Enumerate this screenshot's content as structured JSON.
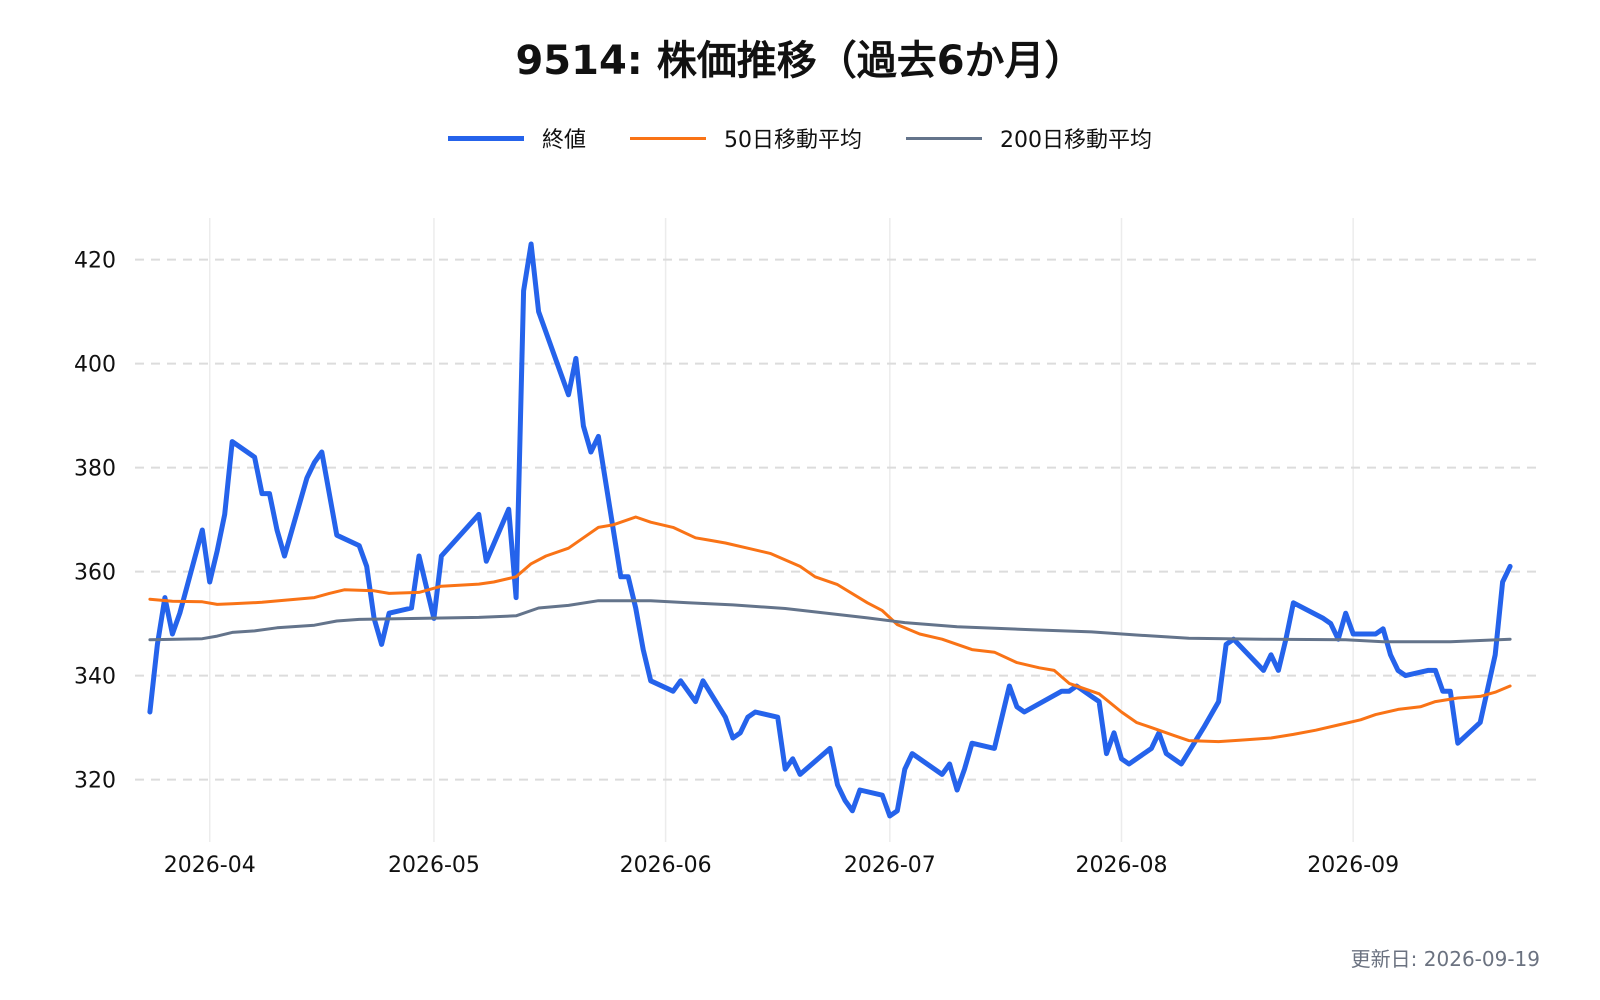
{
  "chart_data": {
    "type": "line",
    "title": "9514: 株価推移（過去6か月）",
    "xlabel": "",
    "ylabel": "",
    "ylim": [
      308,
      428
    ],
    "xlim": [
      "2026-03-22",
      "2026-09-26"
    ],
    "grid": true,
    "legend_position": "top-center",
    "yticks": [
      320,
      340,
      360,
      380,
      400,
      420
    ],
    "xticks": [
      "2026-04",
      "2026-05",
      "2026-06",
      "2026-07",
      "2026-08",
      "2026-09"
    ],
    "series": [
      {
        "name": "終値",
        "color": "#2563eb",
        "points": [
          [
            "2026-03-24",
            333
          ],
          [
            "2026-03-25",
            346
          ],
          [
            "2026-03-26",
            355
          ],
          [
            "2026-03-27",
            348
          ],
          [
            "2026-03-28",
            352
          ],
          [
            "2026-03-31",
            368
          ],
          [
            "2026-04-01",
            358
          ],
          [
            "2026-04-02",
            364
          ],
          [
            "2026-04-03",
            371
          ],
          [
            "2026-04-04",
            385
          ],
          [
            "2026-04-07",
            382
          ],
          [
            "2026-04-08",
            375
          ],
          [
            "2026-04-09",
            375
          ],
          [
            "2026-04-10",
            368
          ],
          [
            "2026-04-11",
            363
          ],
          [
            "2026-04-14",
            378
          ],
          [
            "2026-04-15",
            381
          ],
          [
            "2026-04-16",
            383
          ],
          [
            "2026-04-18",
            367
          ],
          [
            "2026-04-21",
            365
          ],
          [
            "2026-04-22",
            361
          ],
          [
            "2026-04-23",
            351
          ],
          [
            "2026-04-24",
            346
          ],
          [
            "2026-04-25",
            352
          ],
          [
            "2026-04-28",
            353
          ],
          [
            "2026-04-29",
            363
          ],
          [
            "2026-05-01",
            351
          ],
          [
            "2026-05-02",
            363
          ],
          [
            "2026-05-07",
            371
          ],
          [
            "2026-05-08",
            362
          ],
          [
            "2026-05-11",
            372
          ],
          [
            "2026-05-12",
            355
          ],
          [
            "2026-05-13",
            414
          ],
          [
            "2026-05-14",
            423
          ],
          [
            "2026-05-15",
            410
          ],
          [
            "2026-05-18",
            398
          ],
          [
            "2026-05-19",
            394
          ],
          [
            "2026-05-20",
            401
          ],
          [
            "2026-05-21",
            388
          ],
          [
            "2026-05-22",
            383
          ],
          [
            "2026-05-23",
            386
          ],
          [
            "2026-05-26",
            359
          ],
          [
            "2026-05-27",
            359
          ],
          [
            "2026-05-28",
            353
          ],
          [
            "2026-05-29",
            345
          ],
          [
            "2026-05-30",
            339
          ],
          [
            "2026-06-02",
            337
          ],
          [
            "2026-06-03",
            339
          ],
          [
            "2026-06-05",
            335
          ],
          [
            "2026-06-06",
            339
          ],
          [
            "2026-06-09",
            332
          ],
          [
            "2026-06-10",
            328
          ],
          [
            "2026-06-11",
            329
          ],
          [
            "2026-06-12",
            332
          ],
          [
            "2026-06-13",
            333
          ],
          [
            "2026-06-16",
            332
          ],
          [
            "2026-06-17",
            322
          ],
          [
            "2026-06-18",
            324
          ],
          [
            "2026-06-19",
            321
          ],
          [
            "2026-06-23",
            326
          ],
          [
            "2026-06-24",
            319
          ],
          [
            "2026-06-25",
            316
          ],
          [
            "2026-06-26",
            314
          ],
          [
            "2026-06-27",
            318
          ],
          [
            "2026-06-30",
            317
          ],
          [
            "2026-07-01",
            313
          ],
          [
            "2026-07-02",
            314
          ],
          [
            "2026-07-03",
            322
          ],
          [
            "2026-07-04",
            325
          ],
          [
            "2026-07-08",
            321
          ],
          [
            "2026-07-09",
            323
          ],
          [
            "2026-07-10",
            318
          ],
          [
            "2026-07-11",
            322
          ],
          [
            "2026-07-12",
            327
          ],
          [
            "2026-07-15",
            326
          ],
          [
            "2026-07-17",
            338
          ],
          [
            "2026-07-18",
            334
          ],
          [
            "2026-07-19",
            333
          ],
          [
            "2026-07-24",
            337
          ],
          [
            "2026-07-25",
            337
          ],
          [
            "2026-07-26",
            338
          ],
          [
            "2026-07-28",
            336
          ],
          [
            "2026-07-29",
            335
          ],
          [
            "2026-07-30",
            325
          ],
          [
            "2026-07-31",
            329
          ],
          [
            "2026-08-01",
            324
          ],
          [
            "2026-08-02",
            323
          ],
          [
            "2026-08-05",
            326
          ],
          [
            "2026-08-06",
            329
          ],
          [
            "2026-08-07",
            325
          ],
          [
            "2026-08-09",
            323
          ],
          [
            "2026-08-12",
            330
          ],
          [
            "2026-08-14",
            335
          ],
          [
            "2026-08-15",
            346
          ],
          [
            "2026-08-16",
            347
          ],
          [
            "2026-08-20",
            341
          ],
          [
            "2026-08-21",
            344
          ],
          [
            "2026-08-22",
            341
          ],
          [
            "2026-08-23",
            347
          ],
          [
            "2026-08-24",
            354
          ],
          [
            "2026-08-28",
            351
          ],
          [
            "2026-08-29",
            350
          ],
          [
            "2026-08-30",
            347
          ],
          [
            "2026-08-31",
            352
          ],
          [
            "2026-09-01",
            348
          ],
          [
            "2026-09-04",
            348
          ],
          [
            "2026-09-05",
            349
          ],
          [
            "2026-09-06",
            344
          ],
          [
            "2026-09-07",
            341
          ],
          [
            "2026-09-08",
            340
          ],
          [
            "2026-09-11",
            341
          ],
          [
            "2026-09-12",
            341
          ],
          [
            "2026-09-13",
            337
          ],
          [
            "2026-09-14",
            337
          ],
          [
            "2026-09-15",
            327
          ],
          [
            "2026-09-18",
            331
          ],
          [
            "2026-09-20",
            344
          ],
          [
            "2026-09-21",
            358
          ],
          [
            "2026-09-22",
            361
          ]
        ]
      },
      {
        "name": "50日移動平均",
        "color": "#f97316",
        "points": [
          [
            "2026-03-24",
            354.7
          ],
          [
            "2026-03-27",
            354.3
          ],
          [
            "2026-03-31",
            354.2
          ],
          [
            "2026-04-02",
            353.7
          ],
          [
            "2026-04-04",
            353.8
          ],
          [
            "2026-04-08",
            354.1
          ],
          [
            "2026-04-11",
            354.5
          ],
          [
            "2026-04-15",
            355.0
          ],
          [
            "2026-04-17",
            355.8
          ],
          [
            "2026-04-19",
            356.5
          ],
          [
            "2026-04-23",
            356.3
          ],
          [
            "2026-04-25",
            355.8
          ],
          [
            "2026-04-29",
            356.0
          ],
          [
            "2026-05-02",
            357.2
          ],
          [
            "2026-05-07",
            357.6
          ],
          [
            "2026-05-09",
            358.0
          ],
          [
            "2026-05-12",
            359.0
          ],
          [
            "2026-05-14",
            361.5
          ],
          [
            "2026-05-16",
            363.0
          ],
          [
            "2026-05-19",
            364.5
          ],
          [
            "2026-05-21",
            366.5
          ],
          [
            "2026-05-23",
            368.5
          ],
          [
            "2026-05-25",
            369.0
          ],
          [
            "2026-05-28",
            370.5
          ],
          [
            "2026-05-30",
            369.5
          ],
          [
            "2026-06-02",
            368.5
          ],
          [
            "2026-06-05",
            366.5
          ],
          [
            "2026-06-07",
            366.0
          ],
          [
            "2026-06-09",
            365.5
          ],
          [
            "2026-06-12",
            364.5
          ],
          [
            "2026-06-15",
            363.5
          ],
          [
            "2026-06-19",
            361.0
          ],
          [
            "2026-06-21",
            359.0
          ],
          [
            "2026-06-24",
            357.5
          ],
          [
            "2026-06-28",
            354.0
          ],
          [
            "2026-06-30",
            352.5
          ],
          [
            "2026-07-02",
            349.8
          ],
          [
            "2026-07-05",
            348.0
          ],
          [
            "2026-07-08",
            347.0
          ],
          [
            "2026-07-12",
            345.0
          ],
          [
            "2026-07-15",
            344.5
          ],
          [
            "2026-07-18",
            342.5
          ],
          [
            "2026-07-21",
            341.5
          ],
          [
            "2026-07-23",
            341.0
          ],
          [
            "2026-07-25",
            338.5
          ],
          [
            "2026-07-29",
            336.5
          ],
          [
            "2026-08-01",
            333.0
          ],
          [
            "2026-08-03",
            331.0
          ],
          [
            "2026-08-05",
            330.0
          ],
          [
            "2026-08-08",
            328.5
          ],
          [
            "2026-08-10",
            327.5
          ],
          [
            "2026-08-14",
            327.3
          ],
          [
            "2026-08-17",
            327.6
          ],
          [
            "2026-08-21",
            328.0
          ],
          [
            "2026-08-24",
            328.7
          ],
          [
            "2026-08-27",
            329.5
          ],
          [
            "2026-08-30",
            330.5
          ],
          [
            "2026-09-02",
            331.5
          ],
          [
            "2026-09-04",
            332.5
          ],
          [
            "2026-09-07",
            333.5
          ],
          [
            "2026-09-10",
            334.0
          ],
          [
            "2026-09-12",
            335.0
          ],
          [
            "2026-09-15",
            335.7
          ],
          [
            "2026-09-18",
            336.0
          ],
          [
            "2026-09-20",
            336.8
          ],
          [
            "2026-09-22",
            338.0
          ]
        ]
      },
      {
        "name": "200日移動平均",
        "color": "#64748b",
        "points": [
          [
            "2026-03-24",
            346.9
          ],
          [
            "2026-03-31",
            347.1
          ],
          [
            "2026-04-02",
            347.6
          ],
          [
            "2026-04-04",
            348.3
          ],
          [
            "2026-04-07",
            348.6
          ],
          [
            "2026-04-10",
            349.2
          ],
          [
            "2026-04-15",
            349.7
          ],
          [
            "2026-04-18",
            350.5
          ],
          [
            "2026-04-21",
            350.8
          ],
          [
            "2026-04-29",
            351.0
          ],
          [
            "2026-05-07",
            351.2
          ],
          [
            "2026-05-12",
            351.5
          ],
          [
            "2026-05-15",
            353.0
          ],
          [
            "2026-05-19",
            353.5
          ],
          [
            "2026-05-23",
            354.4
          ],
          [
            "2026-05-30",
            354.4
          ],
          [
            "2026-06-04",
            354.0
          ],
          [
            "2026-06-10",
            353.6
          ],
          [
            "2026-06-17",
            352.9
          ],
          [
            "2026-06-22",
            352.1
          ],
          [
            "2026-06-28",
            351.1
          ],
          [
            "2026-07-03",
            350.2
          ],
          [
            "2026-07-10",
            349.4
          ],
          [
            "2026-07-20",
            348.8
          ],
          [
            "2026-07-28",
            348.4
          ],
          [
            "2026-08-03",
            347.8
          ],
          [
            "2026-08-10",
            347.2
          ],
          [
            "2026-08-20",
            347.0
          ],
          [
            "2026-08-31",
            346.9
          ],
          [
            "2026-09-05",
            346.5
          ],
          [
            "2026-09-14",
            346.5
          ],
          [
            "2026-09-22",
            347.0
          ]
        ]
      }
    ]
  },
  "footer": {
    "updated": "更新日: 2026-09-19"
  }
}
